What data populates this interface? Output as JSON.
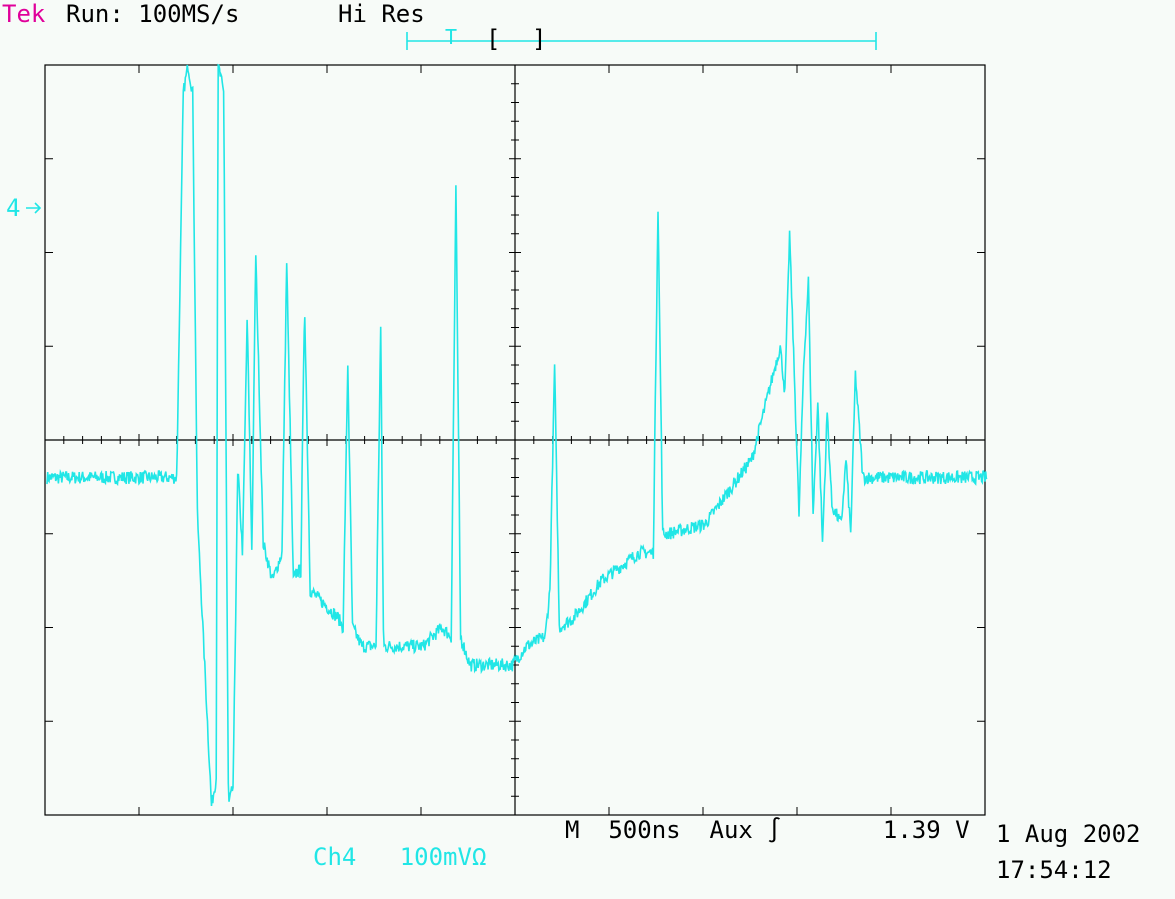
{
  "header": {
    "brand": "Tek",
    "run_label": "Run: 100MS/s",
    "acq_mode": "Hi Res",
    "trigger_marker": "T",
    "record_bracket_left": "[",
    "record_bracket_right": "]"
  },
  "channel": {
    "ground_marker": "4",
    "readout": "Ch4   100mVΩ"
  },
  "timebase": {
    "readout": "M  500ns  Aux ∫       1.39 V"
  },
  "timestamp": {
    "date": "1 Aug 2002",
    "time": "17:54:12"
  },
  "colors": {
    "background": "#f7fbf8",
    "trace": "#21e6e6",
    "brand": "#e0009a",
    "graticule": "#000000"
  },
  "chart_data": {
    "type": "line",
    "title": "",
    "xlabel": "",
    "ylabel": "",
    "x_divisions": 10,
    "y_divisions": 8,
    "time_per_div_ns": 500,
    "volts_per_div_mV": 100,
    "xlim_div": [
      0,
      10
    ],
    "ylim_div": [
      -4,
      4
    ],
    "grid": true,
    "series": [
      {
        "x": [
          0,
          1.38,
          1.45,
          1.5,
          1.55,
          1.6,
          1.75,
          1.8,
          1.82,
          1.88,
          1.93,
          1.98,
          2.03,
          2.08,
          2.13,
          2.18,
          2.22,
          2.3,
          2.4,
          2.5,
          2.55,
          2.62,
          2.66,
          2.7,
          2.74,
          2.8,
          3.0,
          3.1,
          3.15,
          3.2,
          3.25,
          3.35,
          3.6,
          3.5,
          3.55,
          3.58,
          4.0,
          4.2,
          4.3,
          4.35,
          4.4,
          4.5,
          4.95,
          5.1,
          5.3,
          5.35,
          5.4,
          5.45,
          5.6,
          5.9,
          6.3,
          6.45,
          6.5,
          6.55,
          6.6,
          7.0,
          7.5,
          7.8,
          7.85,
          7.9,
          8.0,
          8.05,
          8.1,
          8.15,
          8.2,
          8.25,
          8.3,
          8.35,
          8.45,
          8.5,
          8.55,
          8.6,
          8.68,
          9.0,
          10.0
        ],
        "y": [
          -0.4,
          -0.4,
          3.7,
          4.0,
          3.7,
          -0.8,
          -3.9,
          -3.6,
          4.0,
          3.7,
          -3.9,
          -3.7,
          -0.3,
          -1.2,
          1.3,
          -1.2,
          2.0,
          -1.1,
          -1.5,
          -1.2,
          1.9,
          -1.5,
          -1.4,
          -1.4,
          1.5,
          -1.6,
          -1.8,
          -1.9,
          -2.0,
          0.8,
          -2.0,
          -2.2,
          -2.2,
          -2.2,
          1.2,
          -2.2,
          -2.2,
          -2.0,
          -2.1,
          2.7,
          -2.1,
          -2.4,
          -2.4,
          -2.2,
          -2.1,
          -1.6,
          0.8,
          -2.0,
          -1.9,
          -1.5,
          -1.2,
          -1.2,
          2.5,
          -1.0,
          -1.0,
          -0.9,
          -0.2,
          1.0,
          0.5,
          2.2,
          -0.8,
          0.8,
          1.7,
          -0.8,
          0.4,
          -1.1,
          0.3,
          -0.7,
          -0.9,
          -0.2,
          -1.0,
          0.7,
          -0.4,
          -0.4,
          -0.4
        ]
      }
    ]
  }
}
